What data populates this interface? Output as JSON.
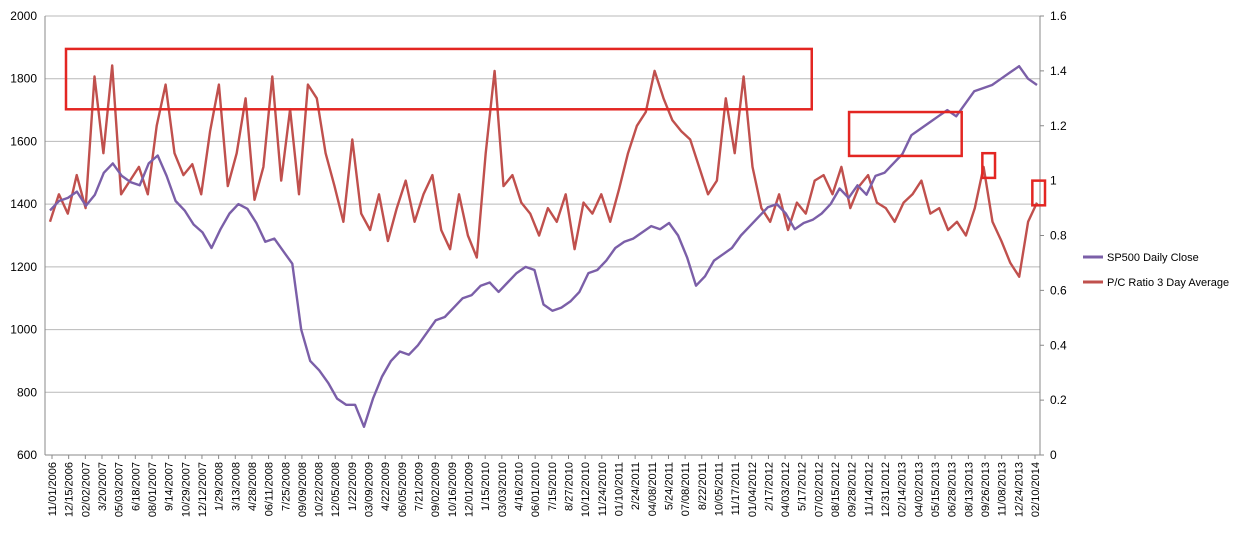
{
  "chart_data": {
    "type": "line",
    "x_axis_labels": [
      "11/01/2006",
      "12/15/2006",
      "02/02/2007",
      "3/20/2007",
      "05/03/2007",
      "6/18/2007",
      "08/01/2007",
      "9/14/2007",
      "10/29/2007",
      "12/12/2007",
      "1/29/2008",
      "3/13/2008",
      "4/28/2008",
      "06/11/2008",
      "7/25/2008",
      "09/09/2008",
      "10/22/2008",
      "12/05/2008",
      "1/22/2009",
      "03/09/2009",
      "4/22/2009",
      "06/05/2009",
      "7/21/2009",
      "09/02/2009",
      "10/16/2009",
      "12/01/2009",
      "1/15/2010",
      "03/03/2010",
      "4/16/2010",
      "06/01/2010",
      "7/15/2010",
      "8/27/2010",
      "10/12/2010",
      "11/24/2010",
      "01/10/2011",
      "2/24/2011",
      "04/08/2011",
      "5/24/2011",
      "07/08/2011",
      "8/22/2011",
      "10/05/2011",
      "11/17/2011",
      "01/04/2012",
      "2/17/2012",
      "04/03/2012",
      "5/17/2012",
      "07/02/2012",
      "08/15/2012",
      "09/28/2012",
      "11/14/2012",
      "12/31/2012",
      "02/14/2013",
      "04/02/2013",
      "05/15/2013",
      "06/28/2013",
      "08/13/2013",
      "09/26/2013",
      "11/08/2013",
      "12/24/2013",
      "02/10/2014"
    ],
    "y_left": {
      "min": 600,
      "max": 2000,
      "ticks": [
        600,
        800,
        1000,
        1200,
        1400,
        1600,
        1800,
        2000
      ]
    },
    "y_right": {
      "min": 0,
      "max": 1.6,
      "ticks": [
        "0",
        "0.2",
        "0.4",
        "0.6",
        "0.8",
        "1",
        "1.2",
        "1.4",
        "1.6"
      ]
    },
    "grid": "horizontal",
    "legend_position": "right",
    "series": [
      {
        "name": "SP500 Daily Close",
        "axis": "left",
        "color": "#7b5fa8",
        "values": [
          1380,
          1410,
          1420,
          1440,
          1395,
          1430,
          1500,
          1530,
          1490,
          1470,
          1460,
          1530,
          1555,
          1490,
          1410,
          1380,
          1335,
          1310,
          1260,
          1320,
          1370,
          1400,
          1385,
          1340,
          1280,
          1290,
          1250,
          1210,
          1000,
          900,
          870,
          830,
          780,
          760,
          760,
          690,
          780,
          850,
          900,
          930,
          920,
          950,
          990,
          1030,
          1040,
          1070,
          1100,
          1110,
          1140,
          1150,
          1120,
          1150,
          1180,
          1200,
          1190,
          1080,
          1060,
          1070,
          1090,
          1120,
          1180,
          1190,
          1220,
          1260,
          1280,
          1290,
          1310,
          1330,
          1320,
          1340,
          1300,
          1230,
          1140,
          1170,
          1220,
          1240,
          1260,
          1300,
          1330,
          1360,
          1390,
          1400,
          1370,
          1320,
          1340,
          1350,
          1370,
          1400,
          1450,
          1420,
          1460,
          1430,
          1490,
          1500,
          1530,
          1560,
          1620,
          1640,
          1660,
          1680,
          1700,
          1680,
          1720,
          1760,
          1770,
          1780,
          1800,
          1820,
          1840,
          1800,
          1780
        ]
      },
      {
        "name": "P/C Ratio 3 Day Average",
        "axis": "right",
        "color": "#c0504d",
        "values": [
          0.85,
          0.95,
          0.88,
          1.02,
          0.9,
          1.38,
          1.1,
          1.42,
          0.95,
          1.0,
          1.05,
          0.95,
          1.2,
          1.35,
          1.1,
          1.02,
          1.06,
          0.95,
          1.18,
          1.35,
          0.98,
          1.1,
          1.3,
          0.93,
          1.05,
          1.38,
          1.0,
          1.26,
          0.95,
          1.35,
          1.3,
          1.1,
          0.98,
          0.85,
          1.15,
          0.88,
          0.82,
          0.95,
          0.78,
          0.9,
          1.0,
          0.85,
          0.95,
          1.02,
          0.82,
          0.75,
          0.95,
          0.8,
          0.72,
          1.1,
          1.4,
          0.98,
          1.02,
          0.92,
          0.88,
          0.8,
          0.9,
          0.85,
          0.95,
          0.75,
          0.92,
          0.88,
          0.95,
          0.85,
          0.97,
          1.1,
          1.2,
          1.25,
          1.4,
          1.3,
          1.22,
          1.18,
          1.15,
          1.05,
          0.95,
          1.0,
          1.3,
          1.1,
          1.38,
          1.05,
          0.9,
          0.85,
          0.95,
          0.82,
          0.92,
          0.88,
          1.0,
          1.02,
          0.95,
          1.05,
          0.9,
          0.98,
          1.02,
          0.92,
          0.9,
          0.85,
          0.92,
          0.95,
          1.0,
          0.88,
          0.9,
          0.82,
          0.85,
          0.8,
          0.9,
          1.05,
          0.85,
          0.78,
          0.7,
          0.65,
          0.85,
          0.92
        ]
      }
    ],
    "highlight_boxes": [
      {
        "from_label": "11/01/2006",
        "to_label": "5/17/2012",
        "y_right_range": [
          1.26,
          1.48
        ]
      },
      {
        "from_label": "08/15/2012",
        "to_label": "06/28/2013",
        "y_right_range": [
          1.09,
          1.25
        ]
      },
      {
        "from_label": "08/13/2013",
        "to_label": "09/26/2013",
        "y_right_range": [
          1.01,
          1.1
        ]
      },
      {
        "from_label": "12/24/2013",
        "to_label": "02/10/2014",
        "y_right_range": [
          0.91,
          1.0
        ]
      }
    ],
    "box_color": "#e32622"
  }
}
